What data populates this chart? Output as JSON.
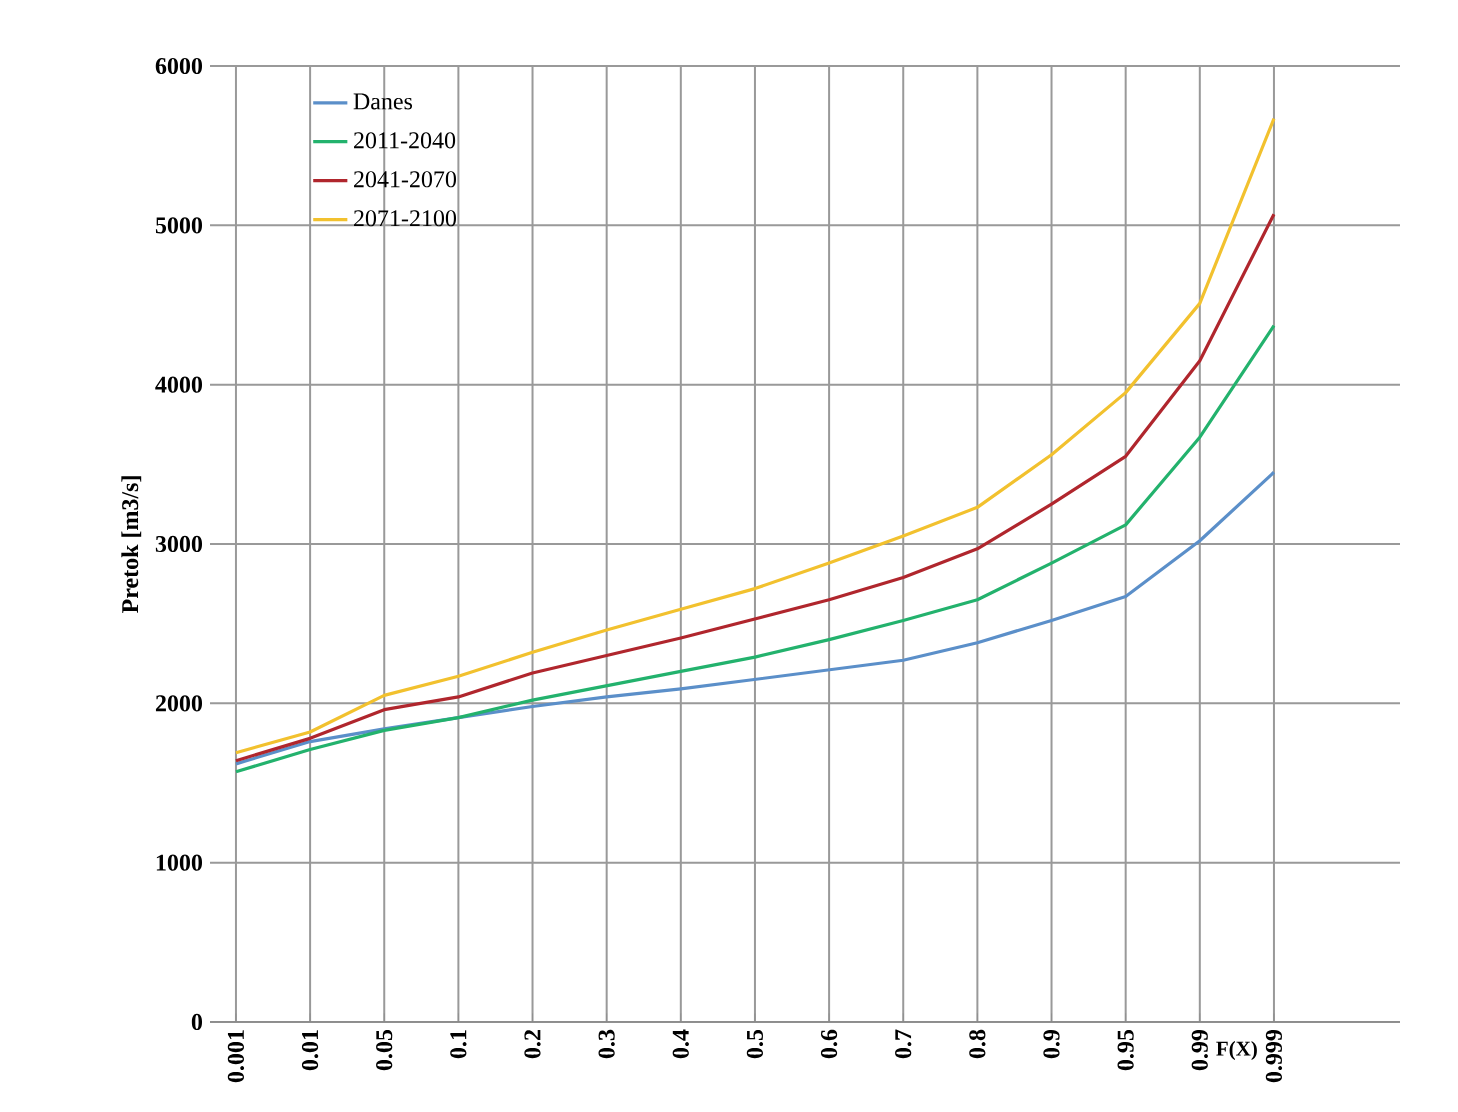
{
  "chart_data": {
    "type": "line",
    "xlabel": "F(X)",
    "ylabel": "Pretok [m3/s]",
    "categories": [
      "0.001",
      "0.01",
      "0.05",
      "0.1",
      "0.2",
      "0.3",
      "0.4",
      "0.5",
      "0.6",
      "0.7",
      "0.8",
      "0.9",
      "0.95",
      "0.99",
      "0.999"
    ],
    "series": [
      {
        "name": "Danes",
        "color": "#5b8fc9",
        "values": [
          1620,
          1760,
          1840,
          1910,
          1980,
          2040,
          2090,
          2150,
          2210,
          2270,
          2380,
          2520,
          2670,
          3020,
          3450
        ]
      },
      {
        "name": "2011-2040",
        "color": "#23b26d",
        "values": [
          1570,
          1710,
          1830,
          1910,
          2020,
          2110,
          2200,
          2290,
          2400,
          2520,
          2650,
          2880,
          3120,
          3670,
          4370
        ]
      },
      {
        "name": "2041-2070",
        "color": "#b0262d",
        "values": [
          1640,
          1780,
          1960,
          2040,
          2190,
          2300,
          2410,
          2530,
          2650,
          2790,
          2970,
          3250,
          3550,
          4150,
          5070
        ]
      },
      {
        "name": "2071-2100",
        "color": "#f2c12e",
        "values": [
          1690,
          1820,
          2050,
          2170,
          2320,
          2460,
          2590,
          2720,
          2880,
          3050,
          3230,
          3560,
          3950,
          4510,
          5670
        ]
      }
    ],
    "ylim": [
      0,
      6000
    ],
    "yticks": [
      0,
      1000,
      2000,
      3000,
      4000,
      5000,
      6000
    ],
    "grid": true,
    "legend": "top left",
    "marker": "none",
    "line_style": "solid"
  }
}
